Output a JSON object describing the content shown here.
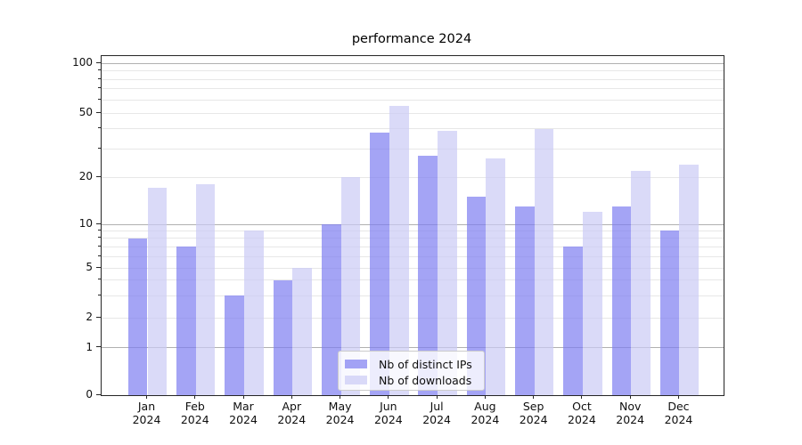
{
  "chart_data": {
    "type": "bar",
    "title": "performance 2024",
    "categories": [
      "Jan",
      "Feb",
      "Mar",
      "Apr",
      "May",
      "Jun",
      "Jul",
      "Aug",
      "Sep",
      "Oct",
      "Nov",
      "Dec"
    ],
    "x_year": "2024",
    "series": [
      {
        "name": "Nb of distinct IPs",
        "color": "rgba(126,126,241,0.7)",
        "values": [
          8,
          7,
          3,
          4,
          10,
          38,
          27,
          15,
          13,
          7,
          13,
          9
        ]
      },
      {
        "name": "Nb of downloads",
        "color": "rgba(202,202,245,0.7)",
        "values": [
          17,
          18,
          9,
          5,
          20,
          55,
          39,
          26,
          40,
          12,
          22,
          24
        ]
      }
    ],
    "yscale": "log above 1, linear 0-1",
    "ylim": [
      0,
      120
    ],
    "yticks": [
      {
        "value": 0,
        "label": "0"
      },
      {
        "value": 1,
        "label": "1"
      },
      {
        "value": 2,
        "label": "2"
      },
      {
        "value": 5,
        "label": "5"
      },
      {
        "value": 10,
        "label": "10"
      },
      {
        "value": 20,
        "label": "20"
      },
      {
        "value": 50,
        "label": "50"
      },
      {
        "value": 100,
        "label": "100"
      }
    ],
    "major_grid_values": [
      1,
      10,
      100
    ],
    "labeled_minor_grid_values": [
      2,
      5,
      20,
      50
    ],
    "minor_grid_values": [
      3,
      4,
      6,
      7,
      8,
      9,
      30,
      40,
      60,
      70,
      80,
      90
    ],
    "grid": "horizontal, major and minor",
    "legend_position": "lower center",
    "colors": {
      "grid_major": "#b0b0b0",
      "grid_minor": "#e7e7e7",
      "axis": "#262626",
      "text": "#0f0f0f"
    }
  }
}
